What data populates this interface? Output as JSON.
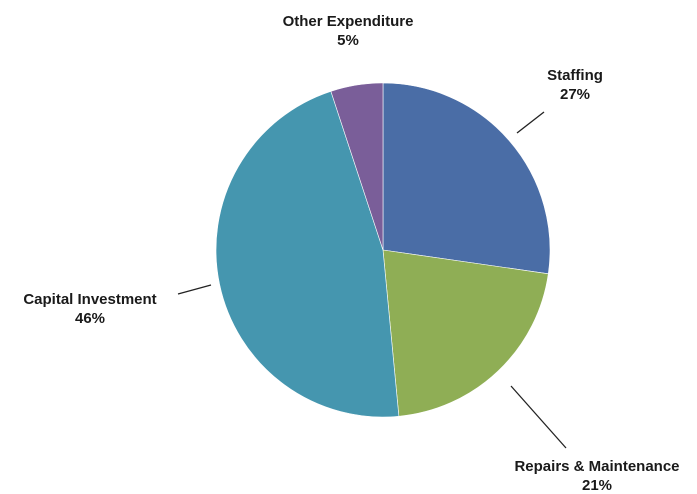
{
  "chart_data": {
    "type": "pie",
    "title": "",
    "slices": [
      {
        "label": "Staffing",
        "value": 27,
        "value_label": "27%",
        "color": "#4A6DA6"
      },
      {
        "label": "Repairs & Maintenance",
        "value": 21,
        "value_label": "21%",
        "color": "#8FAE55"
      },
      {
        "label": "Capital Investment",
        "value": 46,
        "value_label": "46%",
        "color": "#4596AF"
      },
      {
        "label": "Other Expenditure",
        "value": 5,
        "value_label": "5%",
        "color": "#7A5E99"
      }
    ],
    "start_angle_deg": 0,
    "direction": "clockwise",
    "legend": "none"
  }
}
